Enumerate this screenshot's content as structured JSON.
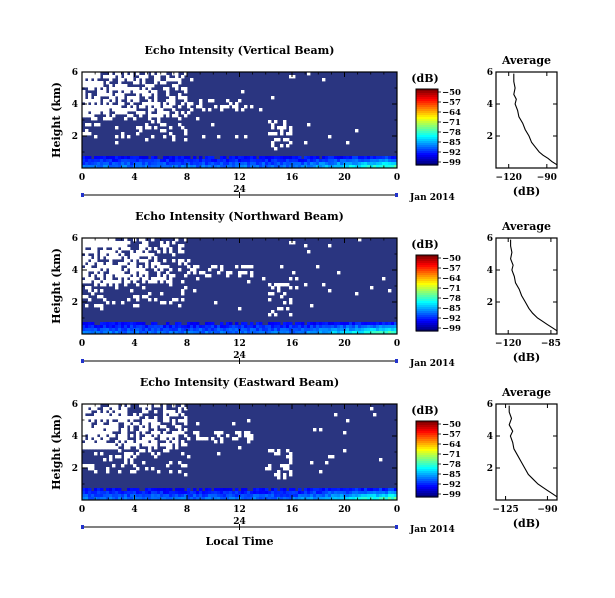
{
  "chart_data": [
    {
      "type": "heatmap",
      "title": "Echo Intensity (Vertical Beam)",
      "ylabel": "Height (km)",
      "x_ticks": [
        "0",
        "4",
        "8",
        "12",
        "16",
        "20",
        "0"
      ],
      "y_ticks": [
        "6",
        "4",
        "2"
      ],
      "xlim": [
        0,
        24
      ],
      "ylim": [
        0,
        6
      ],
      "date_tick": "24",
      "date_label": "Jan 2014",
      "colorbar": {
        "unit": "(dB)",
        "ticks": [
          "-50",
          "-57",
          "-64",
          "-71",
          "-78",
          "-85",
          "-92",
          "-99"
        ],
        "range": [
          -99,
          -50
        ]
      },
      "profile": {
        "title": "Average",
        "xlabel": "(dB)",
        "x_ticks": [
          "-120",
          "-90"
        ],
        "y_ticks": [
          "6",
          "4",
          "2"
        ],
        "xlim": [
          -130,
          -82
        ],
        "ylim": [
          0,
          6
        ],
        "points": [
          [
            -82,
            0.2
          ],
          [
            -86,
            0.4
          ],
          [
            -89,
            0.6
          ],
          [
            -93,
            0.8
          ],
          [
            -96,
            1.0
          ],
          [
            -99,
            1.3
          ],
          [
            -102,
            1.6
          ],
          [
            -104,
            2.0
          ],
          [
            -107,
            2.4
          ],
          [
            -109,
            2.8
          ],
          [
            -112,
            3.2
          ],
          [
            -113,
            3.6
          ],
          [
            -115,
            4.0
          ],
          [
            -114,
            4.3
          ],
          [
            -116,
            4.6
          ],
          [
            -115,
            5.0
          ],
          [
            -116,
            5.4
          ],
          [
            -116,
            5.9
          ]
        ]
      },
      "seed": 11
    },
    {
      "type": "heatmap",
      "title": "Echo Intensity (Northward Beam)",
      "ylabel": "Height (km)",
      "x_ticks": [
        "0",
        "4",
        "8",
        "12",
        "16",
        "20",
        "0"
      ],
      "y_ticks": [
        "6",
        "4",
        "2"
      ],
      "xlim": [
        0,
        24
      ],
      "ylim": [
        0,
        6
      ],
      "date_tick": "24",
      "date_label": "Jan 2014",
      "colorbar": {
        "unit": "(dB)",
        "ticks": [
          "-50",
          "-57",
          "-64",
          "-71",
          "-78",
          "-85",
          "-92",
          "-99"
        ],
        "range": [
          -99,
          -50
        ]
      },
      "profile": {
        "title": "Average",
        "xlabel": "(dB)",
        "x_ticks": [
          "-120",
          "-85"
        ],
        "y_ticks": [
          "6",
          "4",
          "2"
        ],
        "xlim": [
          -130,
          -80
        ],
        "ylim": [
          0,
          6
        ],
        "points": [
          [
            -80,
            0.2
          ],
          [
            -84,
            0.4
          ],
          [
            -88,
            0.6
          ],
          [
            -92,
            0.8
          ],
          [
            -96,
            1.0
          ],
          [
            -100,
            1.3
          ],
          [
            -103,
            1.6
          ],
          [
            -106,
            2.0
          ],
          [
            -109,
            2.4
          ],
          [
            -111,
            2.8
          ],
          [
            -114,
            3.2
          ],
          [
            -115,
            3.6
          ],
          [
            -117,
            4.0
          ],
          [
            -116,
            4.3
          ],
          [
            -118,
            4.7
          ],
          [
            -117,
            5.1
          ],
          [
            -118,
            5.5
          ],
          [
            -118,
            5.9
          ]
        ]
      },
      "seed": 23
    },
    {
      "type": "heatmap",
      "title": "Echo Intensity (Eastward Beam)",
      "ylabel": "Height (km)",
      "xlabel": "Local Time",
      "x_ticks": [
        "0",
        "4",
        "8",
        "12",
        "16",
        "20",
        "0"
      ],
      "y_ticks": [
        "6",
        "4",
        "2"
      ],
      "xlim": [
        0,
        24
      ],
      "ylim": [
        0,
        6
      ],
      "date_tick": "24",
      "date_label": "Jan 2014",
      "colorbar": {
        "unit": "(dB)",
        "ticks": [
          "-50",
          "-57",
          "-64",
          "-71",
          "-78",
          "-85",
          "-92",
          "-99"
        ],
        "range": [
          -99,
          -50
        ]
      },
      "profile": {
        "title": "Average",
        "xlabel": "(dB)",
        "x_ticks": [
          "-125",
          "-90"
        ],
        "y_ticks": [
          "6",
          "4",
          "2"
        ],
        "xlim": [
          -133,
          -82
        ],
        "ylim": [
          0,
          6
        ],
        "points": [
          [
            -82,
            0.2
          ],
          [
            -86,
            0.4
          ],
          [
            -90,
            0.6
          ],
          [
            -94,
            0.8
          ],
          [
            -98,
            1.0
          ],
          [
            -102,
            1.3
          ],
          [
            -106,
            1.6
          ],
          [
            -109,
            2.0
          ],
          [
            -112,
            2.4
          ],
          [
            -115,
            2.8
          ],
          [
            -118,
            3.2
          ],
          [
            -119,
            3.6
          ],
          [
            -121,
            4.0
          ],
          [
            -119,
            4.3
          ],
          [
            -122,
            4.7
          ],
          [
            -120,
            5.1
          ],
          [
            -122,
            5.5
          ],
          [
            -122,
            5.9
          ]
        ]
      },
      "seed": 37
    }
  ]
}
